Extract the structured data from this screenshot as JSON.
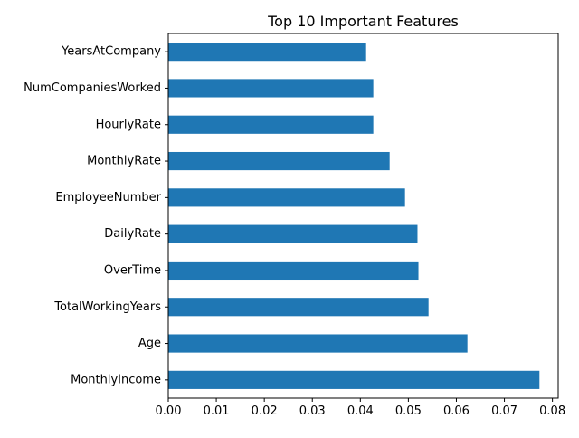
{
  "chart_data": {
    "type": "bar",
    "orientation": "horizontal",
    "title": "Top 10 Important Features",
    "xlabel": "",
    "ylabel": "",
    "categories": [
      "MonthlyIncome",
      "Age",
      "TotalWorkingYears",
      "OverTime",
      "DailyRate",
      "EmployeeNumber",
      "MonthlyRate",
      "HourlyRate",
      "NumCompaniesWorked",
      "YearsAtCompany"
    ],
    "values": [
      0.0773,
      0.0623,
      0.0542,
      0.0521,
      0.0519,
      0.0493,
      0.0461,
      0.0427,
      0.0427,
      0.0412
    ],
    "xlim": [
      0,
      0.0812
    ],
    "xticks": [
      0.0,
      0.01,
      0.02,
      0.03,
      0.04,
      0.05,
      0.06,
      0.07,
      0.08
    ],
    "xtick_labels": [
      "0.00",
      "0.01",
      "0.02",
      "0.03",
      "0.04",
      "0.05",
      "0.06",
      "0.07",
      "0.08"
    ],
    "grid": false,
    "bar_color": "#1f77b4"
  }
}
